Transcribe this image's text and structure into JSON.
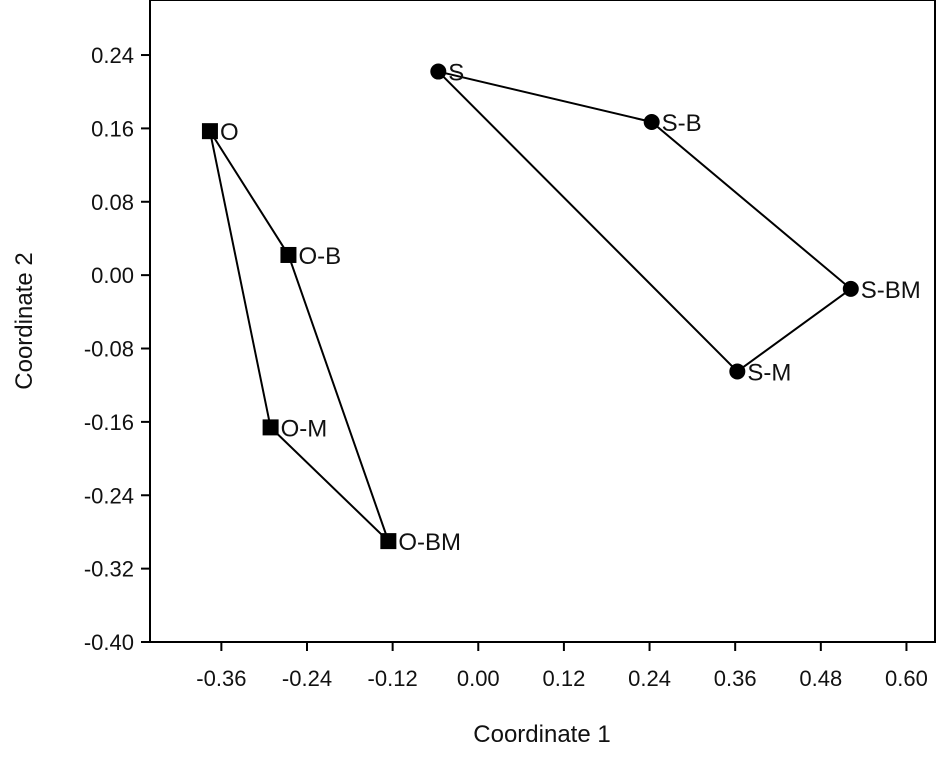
{
  "chart_data": {
    "type": "scatter",
    "xlabel": "Coordinate 1",
    "ylabel": "Coordinate 2",
    "xlim": [
      -0.46,
      0.64
    ],
    "ylim": [
      -0.4,
      0.3
    ],
    "x_ticks": [
      "-0.36",
      "-0.24",
      "-0.12",
      "0.00",
      "0.12",
      "0.24",
      "0.36",
      "0.48",
      "0.60"
    ],
    "y_ticks": [
      "0.24",
      "0.16",
      "0.08",
      "0.00",
      "-0.08",
      "-0.16",
      "-0.24",
      "-0.32",
      "-0.40"
    ],
    "grid": false,
    "series": [
      {
        "marker": "square",
        "color": "#000000",
        "points": [
          {
            "label": "O",
            "x": -0.376,
            "y": 0.157
          },
          {
            "label": "O-B",
            "x": -0.266,
            "y": 0.022
          },
          {
            "label": "O-M",
            "x": -0.291,
            "y": -0.166
          },
          {
            "label": "O-BM",
            "x": -0.126,
            "y": -0.29
          }
        ],
        "hull": [
          "O",
          "O-B",
          "O-BM",
          "O-M"
        ]
      },
      {
        "marker": "circle",
        "color": "#000000",
        "points": [
          {
            "label": "S",
            "x": -0.056,
            "y": 0.222
          },
          {
            "label": "S-B",
            "x": 0.243,
            "y": 0.167
          },
          {
            "label": "S-BM",
            "x": 0.522,
            "y": -0.015
          },
          {
            "label": "S-M",
            "x": 0.363,
            "y": -0.105
          }
        ],
        "hull": [
          "S",
          "S-B",
          "S-BM",
          "S-M"
        ]
      }
    ]
  }
}
